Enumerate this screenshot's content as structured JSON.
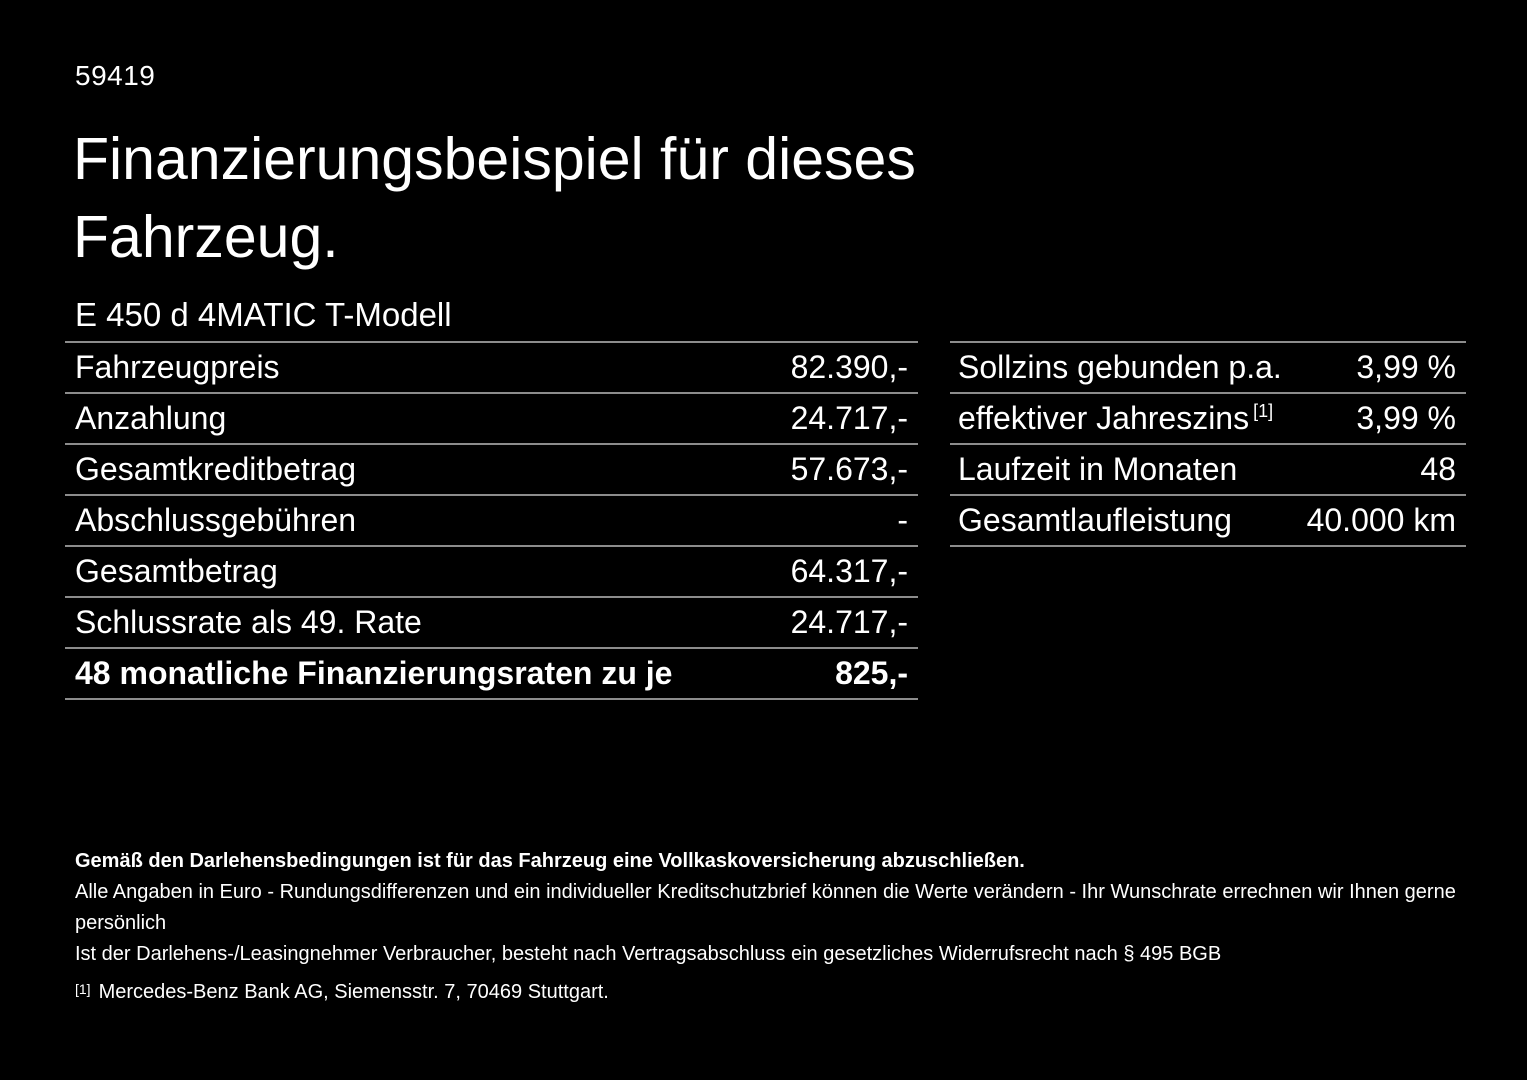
{
  "colors": {
    "background": "#000000",
    "text": "#ffffff",
    "divider": "#8c8c8c"
  },
  "header": {
    "doc_number": "59419",
    "title": "Finanzierungsbeispiel für dieses Fahrzeug.",
    "vehicle_model": "E 450 d 4MATIC T-Modell"
  },
  "finance_table": {
    "rows": [
      {
        "label": "Fahrzeugpreis",
        "value": "82.390,-"
      },
      {
        "label": "Anzahlung",
        "value": "24.717,-"
      },
      {
        "label": "Gesamtkreditbetrag",
        "value": "57.673,-"
      },
      {
        "label": "Abschlussgebühren",
        "value": "-"
      },
      {
        "label": "Gesamtbetrag",
        "value": "64.317,-"
      },
      {
        "label": "Schlussrate als 49. Rate",
        "value": "24.717,-"
      },
      {
        "label": "48 monatliche Finanzierungsraten zu je",
        "value": "825,-"
      }
    ]
  },
  "conditions_table": {
    "rows": [
      {
        "label": "Sollzins gebunden p.a.",
        "value": "3,99 %"
      },
      {
        "label": "effektiver Jahreszins",
        "footnote_marker": "[1]",
        "value": "3,99 %"
      },
      {
        "label": "Laufzeit in Monaten",
        "value": "48"
      },
      {
        "label": "Gesamtlaufleistung",
        "value": "40.000 km"
      }
    ]
  },
  "footnotes": {
    "insurance_note": "Gemäß den Darlehensbedingungen ist für das Fahrzeug eine Vollkaskoversicherung abzuschließen.",
    "values_note": "Alle Angaben in Euro - Rundungsdifferenzen und ein individueller Kreditschutzbrief können die Werte verändern - Ihr Wunschrate errechnen wir Ihnen gerne persönlich",
    "withdrawal_note": "Ist der Darlehens-/Leasingnehmer Verbraucher, besteht nach Vertragsabschluss ein gesetzliches Widerrufsrecht nach § 495 BGB",
    "bank_footnote_marker": "[1]",
    "bank_footnote": "Mercedes-Benz Bank AG, Siemensstr. 7, 70469 Stuttgart."
  }
}
